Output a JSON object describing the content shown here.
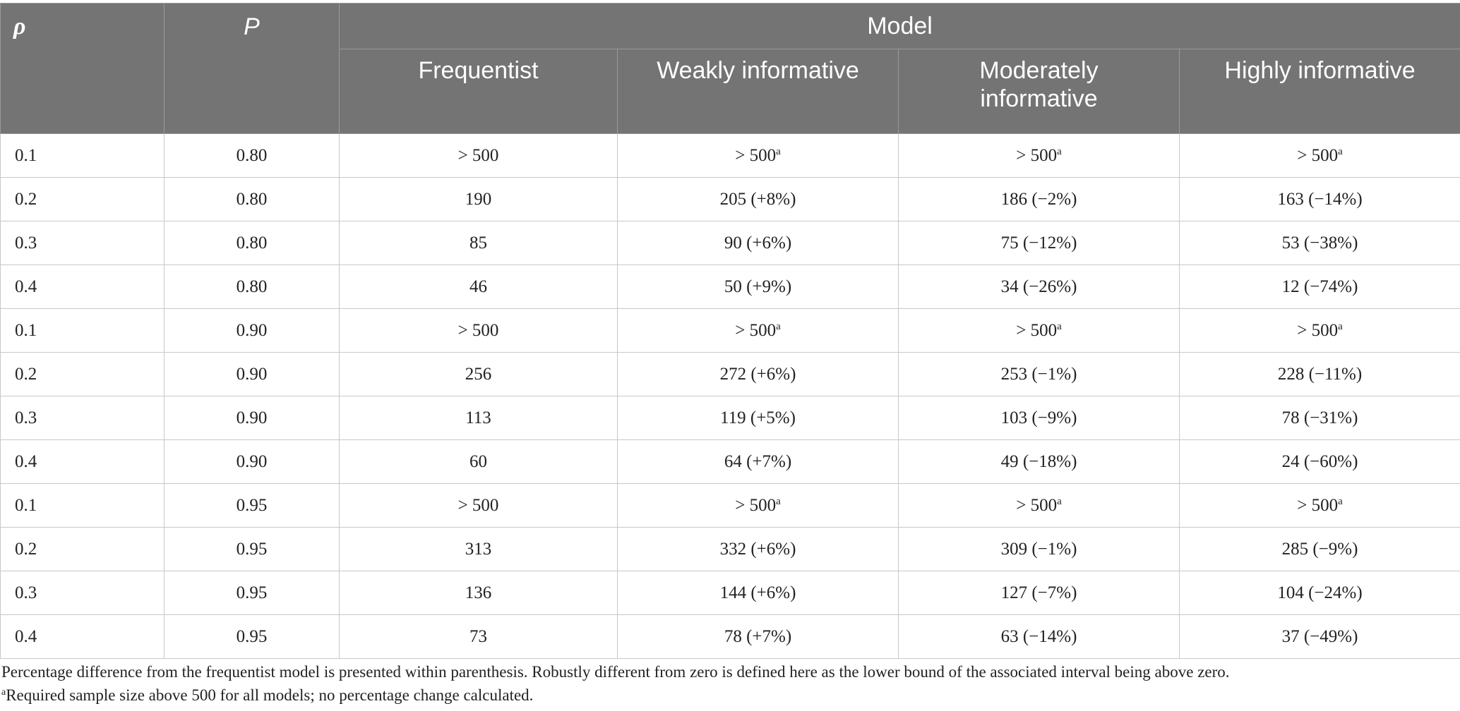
{
  "table": {
    "headers": {
      "rho": "ρ",
      "p": "P",
      "group": "Model",
      "models": [
        "Frequentist",
        "Weakly informative",
        "Moderately informative",
        "Highly informative"
      ]
    },
    "rows": [
      {
        "rho": "0.1",
        "p": "0.80",
        "cells": [
          {
            "v": "> 500",
            "m": ""
          },
          {
            "v": "> 500",
            "m": "a"
          },
          {
            "v": "> 500",
            "m": "a"
          },
          {
            "v": "> 500",
            "m": "a"
          }
        ]
      },
      {
        "rho": "0.2",
        "p": "0.80",
        "cells": [
          {
            "v": "190",
            "m": ""
          },
          {
            "v": "205 (+8%)",
            "m": ""
          },
          {
            "v": "186 (−2%)",
            "m": ""
          },
          {
            "v": "163 (−14%)",
            "m": ""
          }
        ]
      },
      {
        "rho": "0.3",
        "p": "0.80",
        "cells": [
          {
            "v": "85",
            "m": ""
          },
          {
            "v": "90 (+6%)",
            "m": ""
          },
          {
            "v": "75 (−12%)",
            "m": ""
          },
          {
            "v": "53 (−38%)",
            "m": ""
          }
        ]
      },
      {
        "rho": "0.4",
        "p": "0.80",
        "cells": [
          {
            "v": "46",
            "m": ""
          },
          {
            "v": "50 (+9%)",
            "m": ""
          },
          {
            "v": "34 (−26%)",
            "m": ""
          },
          {
            "v": "12 (−74%)",
            "m": ""
          }
        ]
      },
      {
        "rho": "0.1",
        "p": "0.90",
        "cells": [
          {
            "v": "> 500",
            "m": ""
          },
          {
            "v": "> 500",
            "m": "a"
          },
          {
            "v": "> 500",
            "m": "a"
          },
          {
            "v": "> 500",
            "m": "a"
          }
        ]
      },
      {
        "rho": "0.2",
        "p": "0.90",
        "cells": [
          {
            "v": "256",
            "m": ""
          },
          {
            "v": "272 (+6%)",
            "m": ""
          },
          {
            "v": "253 (−1%)",
            "m": ""
          },
          {
            "v": "228 (−11%)",
            "m": ""
          }
        ]
      },
      {
        "rho": "0.3",
        "p": "0.90",
        "cells": [
          {
            "v": "113",
            "m": ""
          },
          {
            "v": "119 (+5%)",
            "m": ""
          },
          {
            "v": "103 (−9%)",
            "m": ""
          },
          {
            "v": "78 (−31%)",
            "m": ""
          }
        ]
      },
      {
        "rho": "0.4",
        "p": "0.90",
        "cells": [
          {
            "v": "60",
            "m": ""
          },
          {
            "v": "64 (+7%)",
            "m": ""
          },
          {
            "v": "49 (−18%)",
            "m": ""
          },
          {
            "v": "24 (−60%)",
            "m": ""
          }
        ]
      },
      {
        "rho": "0.1",
        "p": "0.95",
        "cells": [
          {
            "v": "> 500",
            "m": ""
          },
          {
            "v": "> 500",
            "m": "a"
          },
          {
            "v": "> 500",
            "m": "a"
          },
          {
            "v": "> 500",
            "m": "a"
          }
        ]
      },
      {
        "rho": "0.2",
        "p": "0.95",
        "cells": [
          {
            "v": "313",
            "m": ""
          },
          {
            "v": "332 (+6%)",
            "m": ""
          },
          {
            "v": "309 (−1%)",
            "m": ""
          },
          {
            "v": "285 (−9%)",
            "m": ""
          }
        ]
      },
      {
        "rho": "0.3",
        "p": "0.95",
        "cells": [
          {
            "v": "136",
            "m": ""
          },
          {
            "v": "144 (+6%)",
            "m": ""
          },
          {
            "v": "127 (−7%)",
            "m": ""
          },
          {
            "v": "104 (−24%)",
            "m": ""
          }
        ]
      },
      {
        "rho": "0.4",
        "p": "0.95",
        "cells": [
          {
            "v": "73",
            "m": ""
          },
          {
            "v": "78 (+7%)",
            "m": ""
          },
          {
            "v": "63 (−14%)",
            "m": ""
          },
          {
            "v": "37 (−49%)",
            "m": ""
          }
        ]
      }
    ]
  },
  "notes": {
    "line1": "Percentage difference from the frequentist model is presented within parenthesis. Robustly different from zero is defined here as the lower bound of the associated interval being above zero.",
    "line2_mark": "a",
    "line2": "Required sample size above 500 for all models; no percentage change calculated."
  },
  "colors": {
    "header_bg": "#747474",
    "header_text": "#ffffff",
    "grid": "#c8c8c8"
  }
}
